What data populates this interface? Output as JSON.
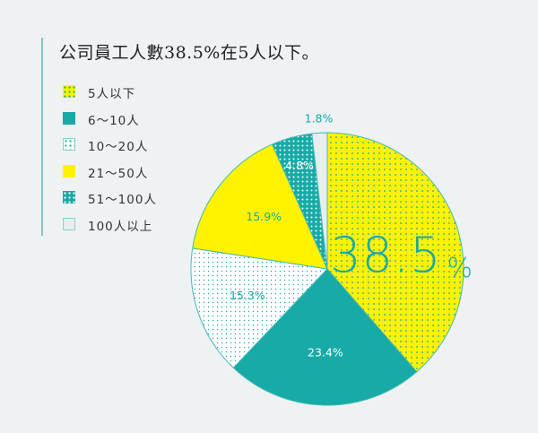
{
  "title": "公司員工人數38.5%在5人以下。",
  "colors": {
    "teal": "#17aaa6",
    "yellow": "#fff300",
    "light": "#e7eef0",
    "white": "#ffffff",
    "background": "#eef2f3"
  },
  "legend": [
    {
      "label": "5人以下",
      "pattern": "yellow-dots"
    },
    {
      "label": "6～10人",
      "pattern": "teal-solid"
    },
    {
      "label": "10～20人",
      "pattern": "white-dots"
    },
    {
      "label": "21～50人",
      "pattern": "yellow-solid"
    },
    {
      "label": "51～100人",
      "pattern": "teal-dots"
    },
    {
      "label": "100人以上",
      "pattern": "light-solid"
    }
  ],
  "chart_data": {
    "type": "pie",
    "title": "公司員工人數38.5%在5人以下。",
    "start": "12 o'clock, clockwise",
    "slices": [
      {
        "label": "5人以下",
        "value": 38.5,
        "display": "38.5",
        "unit": "%",
        "pattern": "yellow-dots",
        "highlight": true
      },
      {
        "label": "6～10人",
        "value": 23.4,
        "display": "23.4%",
        "pattern": "teal-solid"
      },
      {
        "label": "10～20人",
        "value": 15.3,
        "display": "15.3%",
        "pattern": "white-dots"
      },
      {
        "label": "21～50人",
        "value": 15.9,
        "display": "15.9%",
        "pattern": "yellow-solid"
      },
      {
        "label": "51～100人",
        "value": 4.8,
        "display": "4.8%",
        "pattern": "teal-dots"
      },
      {
        "label": "100人以上",
        "value": 1.8,
        "display": "1.8%",
        "pattern": "light-solid"
      }
    ]
  }
}
